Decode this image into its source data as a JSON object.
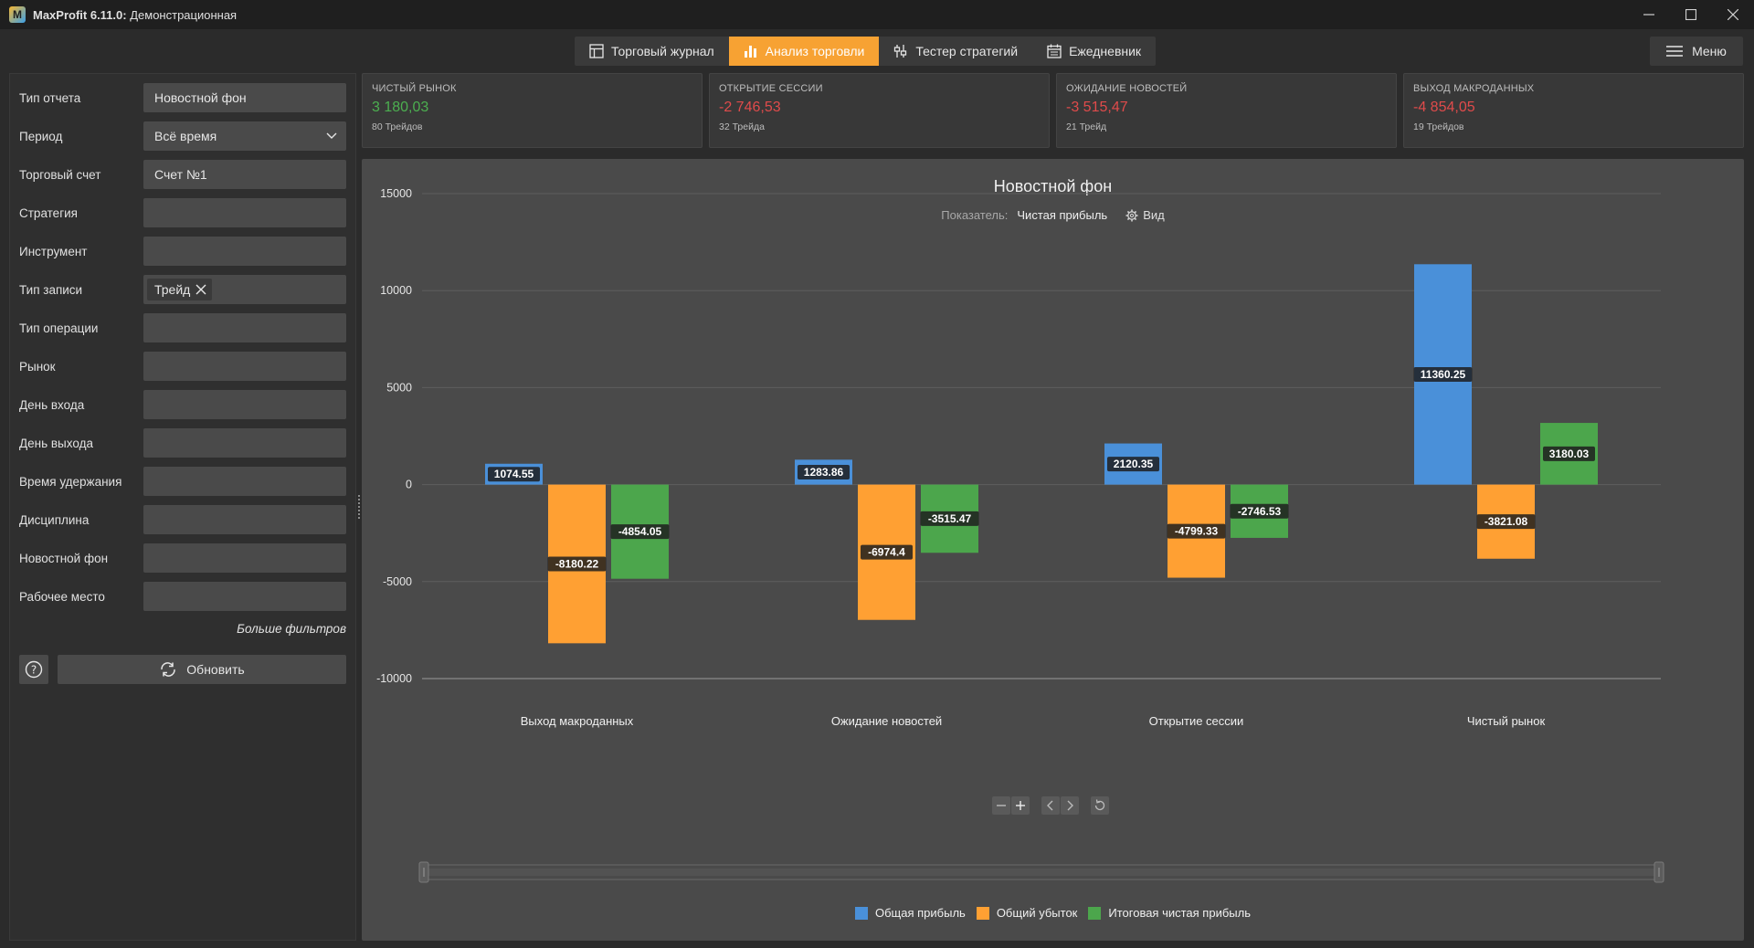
{
  "app": {
    "name": "MaxProfit 6.11.0:",
    "edition": "Демонстрационная"
  },
  "nav": {
    "tabs": [
      {
        "label": "Торговый журнал",
        "icon": "table-icon",
        "active": false
      },
      {
        "label": "Анализ торговли",
        "icon": "bar-chart-icon",
        "active": true
      },
      {
        "label": "Тестер стратегий",
        "icon": "sliders-icon",
        "active": false
      },
      {
        "label": "Ежедневник",
        "icon": "calendar-icon",
        "active": false
      }
    ],
    "menu_label": "Меню"
  },
  "filters": {
    "rows": [
      {
        "label": "Тип отчета",
        "value": "Новостной фон"
      },
      {
        "label": "Период",
        "value": "Всё время",
        "dropdown": true
      },
      {
        "label": "Торговый счет",
        "value": "Счет №1"
      },
      {
        "label": "Стратегия",
        "value": ""
      },
      {
        "label": "Инструмент",
        "value": ""
      },
      {
        "label": "Тип записи",
        "value": "",
        "chip": "Трейд"
      },
      {
        "label": "Тип операции",
        "value": ""
      },
      {
        "label": "Рынок",
        "value": ""
      },
      {
        "label": "День входа",
        "value": ""
      },
      {
        "label": "День выхода",
        "value": ""
      },
      {
        "label": "Время удержания",
        "value": ""
      },
      {
        "label": "Дисциплина",
        "value": ""
      },
      {
        "label": "Новостной фон",
        "value": ""
      },
      {
        "label": "Рабочее место",
        "value": ""
      }
    ],
    "more_filters": "Больше фильтров",
    "refresh_label": "Обновить"
  },
  "cards": [
    {
      "title": "ЧИСТЫЙ РЫНОК",
      "value": "3 180,03",
      "sub": "80 Трейдов",
      "sign": "pos"
    },
    {
      "title": "ОТКРЫТИЕ СЕССИИ",
      "value": "-2 746,53",
      "sub": "32 Трейда",
      "sign": "neg"
    },
    {
      "title": "ОЖИДАНИЕ НОВОСТЕЙ",
      "value": "-3 515,47",
      "sub": "21 Трейд",
      "sign": "neg"
    },
    {
      "title": "ВЫХОД МАКРОДАННЫХ",
      "value": "-4 854,05",
      "sub": "19 Трейдов",
      "sign": "neg"
    }
  ],
  "chart_header": {
    "title": "Новостной фон",
    "indicator_label": "Показатель:",
    "indicator_value": "Чистая прибыль",
    "view_label": "Вид"
  },
  "colors": {
    "profit": "#4a90d9",
    "loss": "#ffa033",
    "net": "#4ca64c",
    "accent": "#f7a233"
  },
  "chart_data": {
    "type": "bar",
    "title": "Новостной фон",
    "categories": [
      "Выход макроданных",
      "Ожидание новостей",
      "Открытие сессии",
      "Чистый рынок"
    ],
    "series": [
      {
        "name": "Общая прибыль",
        "values": [
          1074.55,
          1283.86,
          2120.35,
          11360.25
        ]
      },
      {
        "name": "Общий убыток",
        "values": [
          -8180.22,
          -6974.4,
          -4799.33,
          -3821.08
        ]
      },
      {
        "name": "Итоговая чистая прибыль",
        "values": [
          -4854.05,
          -3515.47,
          -2746.53,
          3180.03
        ]
      }
    ],
    "y_ticks": [
      15000,
      10000,
      5000,
      0,
      -5000,
      -10000
    ],
    "ylim": [
      -10000,
      15000
    ],
    "grid": true,
    "legend": "bottom"
  }
}
